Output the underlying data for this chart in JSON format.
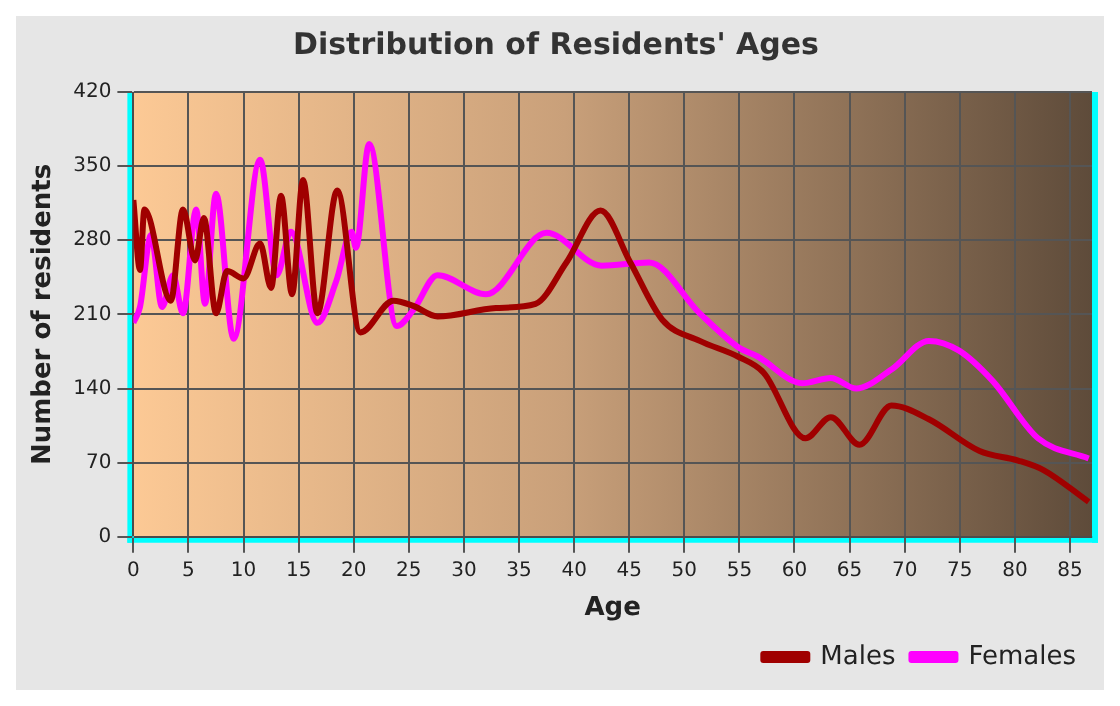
{
  "chart_data": {
    "type": "line",
    "title": "Distribution of Residents' Ages",
    "xlabel": "Age",
    "ylabel": "Number of residents",
    "xlim": [
      0,
      87
    ],
    "xticks": [
      0,
      5,
      10,
      15,
      20,
      25,
      30,
      35,
      40,
      45,
      50,
      55,
      60,
      65,
      70,
      75,
      80,
      85
    ],
    "ylim": [
      0,
      420
    ],
    "yticks": [
      0,
      70,
      140,
      210,
      280,
      350,
      420
    ],
    "grid": true,
    "legend": "bottom right",
    "marker": "none",
    "line_style": "solid",
    "series": [
      {
        "name": "Males",
        "color": "#a00000",
        "x": [
          0,
          0.6,
          1,
          3.4,
          4.5,
          5.6,
          6.4,
          7.5,
          8.5,
          10,
          11.5,
          12.5,
          13.4,
          14.4,
          15.4,
          16.7,
          18.5,
          20.6,
          23.6,
          25.4,
          27.6,
          32.9,
          36.5,
          39.3,
          42.4,
          45.1,
          48,
          51.4,
          54.9,
          57.2,
          61,
          63.3,
          65.9,
          68.8,
          72.2,
          76.8,
          80.3,
          82.6,
          86.7
        ],
        "values": [
          318,
          252,
          309,
          223,
          309,
          261,
          301,
          211,
          251,
          244,
          277,
          235,
          322,
          229,
          337,
          211,
          327,
          193,
          223,
          218,
          208,
          216,
          220,
          259,
          308,
          259,
          205,
          185,
          170,
          155,
          93,
          113,
          87,
          124,
          111,
          81,
          72,
          63,
          33
        ]
      },
      {
        "name": "Females",
        "color": "#ff00ff",
        "x": [
          0,
          0.6,
          1.6,
          2.6,
          3.6,
          4.5,
          5.7,
          6.5,
          7.5,
          9.1,
          11.5,
          13,
          14.3,
          16.7,
          18.4,
          19.8,
          20.2,
          21.4,
          23.9,
          25.4,
          27.6,
          32,
          37.5,
          42.5,
          46.8,
          51.4,
          54.9,
          56.7,
          60.7,
          63.3,
          65.6,
          68.8,
          72.2,
          74.9,
          78,
          82.1,
          86.7
        ],
        "values": [
          202,
          217,
          285,
          217,
          247,
          211,
          309,
          220,
          324,
          187,
          356,
          247,
          288,
          202,
          241,
          288,
          273,
          371,
          199,
          214,
          247,
          229,
          287,
          256,
          259,
          211,
          179,
          170,
          145,
          150,
          140,
          158,
          185,
          176,
          147,
          93,
          74
        ]
      }
    ]
  }
}
